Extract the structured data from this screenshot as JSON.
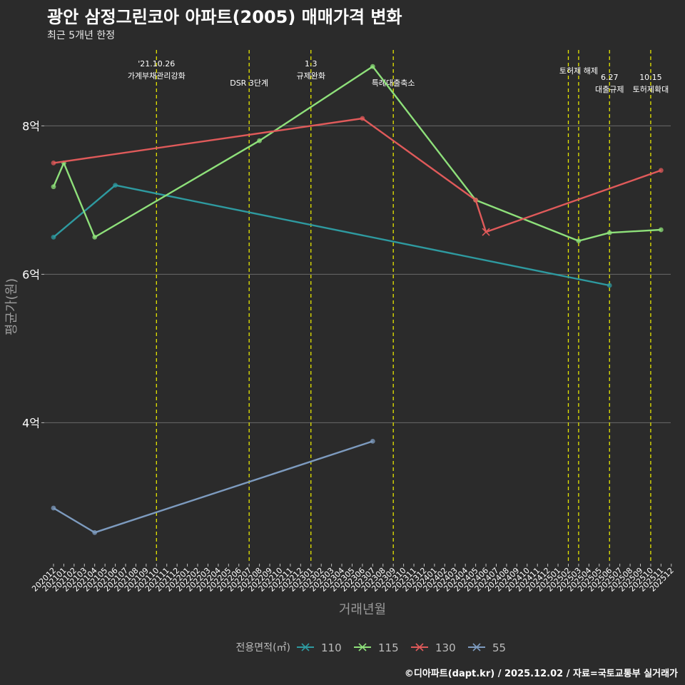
{
  "title": "광안 삼정그린코아 아파트(2005) 매매가격 변화",
  "subtitle": "최근 5개년 한정",
  "caption": "©디아파트(dapt.kr) / 2025.12.02 / 자료=국토교통부 실거래가",
  "chart_data": {
    "type": "line",
    "xlabel": "거래년월",
    "ylabel": "평균가(원)",
    "y_unit": "억",
    "ylim": [
      2.1,
      9.1
    ],
    "yticks": [
      {
        "value": 4,
        "label": "4억"
      },
      {
        "value": 6,
        "label": "6억"
      },
      {
        "value": 8,
        "label": "8억"
      }
    ],
    "categories": [
      "202012",
      "202101",
      "202102",
      "202103",
      "202104",
      "202105",
      "202106",
      "202107",
      "202108",
      "202109",
      "202110",
      "202111",
      "202112",
      "202201",
      "202202",
      "202203",
      "202204",
      "202205",
      "202206",
      "202207",
      "202208",
      "202209",
      "202210",
      "202211",
      "202212",
      "202301",
      "202302",
      "202303",
      "202304",
      "202305",
      "202306",
      "202307",
      "202308",
      "202309",
      "202310",
      "202311",
      "202312",
      "202401",
      "202402",
      "202403",
      "202404",
      "202405",
      "202406",
      "202407",
      "202408",
      "202409",
      "202410",
      "202411",
      "202412",
      "202501",
      "202502",
      "202503",
      "202504",
      "202505",
      "202506",
      "202507",
      "202508",
      "202509",
      "202510",
      "202511",
      "202512"
    ],
    "legend_title": "전용면적(㎡)",
    "series": [
      {
        "name": "110",
        "color": "#2e9aa0",
        "points": [
          {
            "x": "202012",
            "y": 6.5
          },
          {
            "x": "202106",
            "y": 7.2
          },
          {
            "x": "202506",
            "y": 5.85
          }
        ]
      },
      {
        "name": "115",
        "color": "#8ee07a",
        "points": [
          {
            "x": "202012",
            "y": 7.18
          },
          {
            "x": "202101",
            "y": 7.5
          },
          {
            "x": "202104",
            "y": 6.5
          },
          {
            "x": "202208",
            "y": 7.8
          },
          {
            "x": "202307",
            "y": 8.8
          },
          {
            "x": "202405",
            "y": 7.0
          },
          {
            "x": "202503",
            "y": 6.45
          },
          {
            "x": "202506",
            "y": 6.56
          },
          {
            "x": "202511",
            "y": 6.6
          }
        ]
      },
      {
        "name": "130",
        "color": "#e05a5a",
        "points": [
          {
            "x": "202012",
            "y": 7.5
          },
          {
            "x": "202306",
            "y": 8.1
          },
          {
            "x": "202405",
            "y": 7.0
          },
          {
            "x": "202406",
            "y": 6.57
          },
          {
            "x": "202511",
            "y": 7.4
          }
        ]
      },
      {
        "name": "55",
        "color": "#7d9bbf",
        "points": [
          {
            "x": "202012",
            "y": 2.85
          },
          {
            "x": "202104",
            "y": 2.52
          },
          {
            "x": "202307",
            "y": 3.75
          }
        ]
      }
    ],
    "annotations": [
      {
        "x": "202110",
        "lines": [
          "'21.10.26",
          "가계부채관리강화"
        ],
        "row": 0
      },
      {
        "x": "202207",
        "lines": [
          "DSR 3단계"
        ],
        "row": 2
      },
      {
        "x": "202301",
        "lines": [
          "1.3",
          "규제완화"
        ],
        "row": 0
      },
      {
        "x": "202309",
        "lines": [
          "특례대출축소"
        ],
        "row": 2
      },
      {
        "x": "202502",
        "lines": [],
        "row": 1
      },
      {
        "x": "202503",
        "lines": [
          "토허제 해제"
        ],
        "row": 1
      },
      {
        "x": "202506",
        "lines": [
          "6.27",
          "대출규제"
        ],
        "row": 2
      },
      {
        "x": "202510",
        "lines": [
          "10.15",
          "토허제확대"
        ],
        "row": 2
      }
    ],
    "legend_position": "bottom",
    "grid": "horizontal"
  }
}
